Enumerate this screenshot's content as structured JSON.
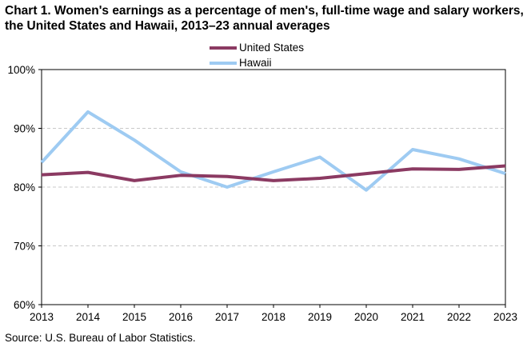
{
  "title": "Chart 1. Women's earnings as a percentage of men's, full-time wage and salary workers, the United States and Hawaii, 2013–23 annual averages",
  "source": "Source:  U.S. Bureau of Labor Statistics.",
  "chart_data": {
    "type": "line",
    "title": "Chart 1. Women's earnings as a percentage of men's, full-time wage and salary workers, the United States and Hawaii, 2013–23 annual averages",
    "xlabel": "",
    "ylabel": "",
    "x": [
      "2013",
      "2014",
      "2015",
      "2016",
      "2017",
      "2018",
      "2019",
      "2020",
      "2021",
      "2022",
      "2023"
    ],
    "series": [
      {
        "name": "United States",
        "color": "#8b3a62",
        "values": [
          82.1,
          82.5,
          81.1,
          82.0,
          81.8,
          81.1,
          81.5,
          82.3,
          83.1,
          83.0,
          83.6
        ]
      },
      {
        "name": "Hawaii",
        "color": "#9ecbf2",
        "values": [
          84.2,
          92.8,
          88.0,
          82.6,
          80.0,
          82.6,
          85.1,
          79.5,
          86.4,
          84.8,
          82.3
        ]
      }
    ],
    "ylim": [
      60,
      100
    ],
    "yticks": [
      "60%",
      "70%",
      "80%",
      "90%",
      "100%"
    ],
    "ytick_values": [
      60,
      70,
      80,
      90,
      100
    ],
    "grid": true,
    "legend_position": "top-center"
  }
}
